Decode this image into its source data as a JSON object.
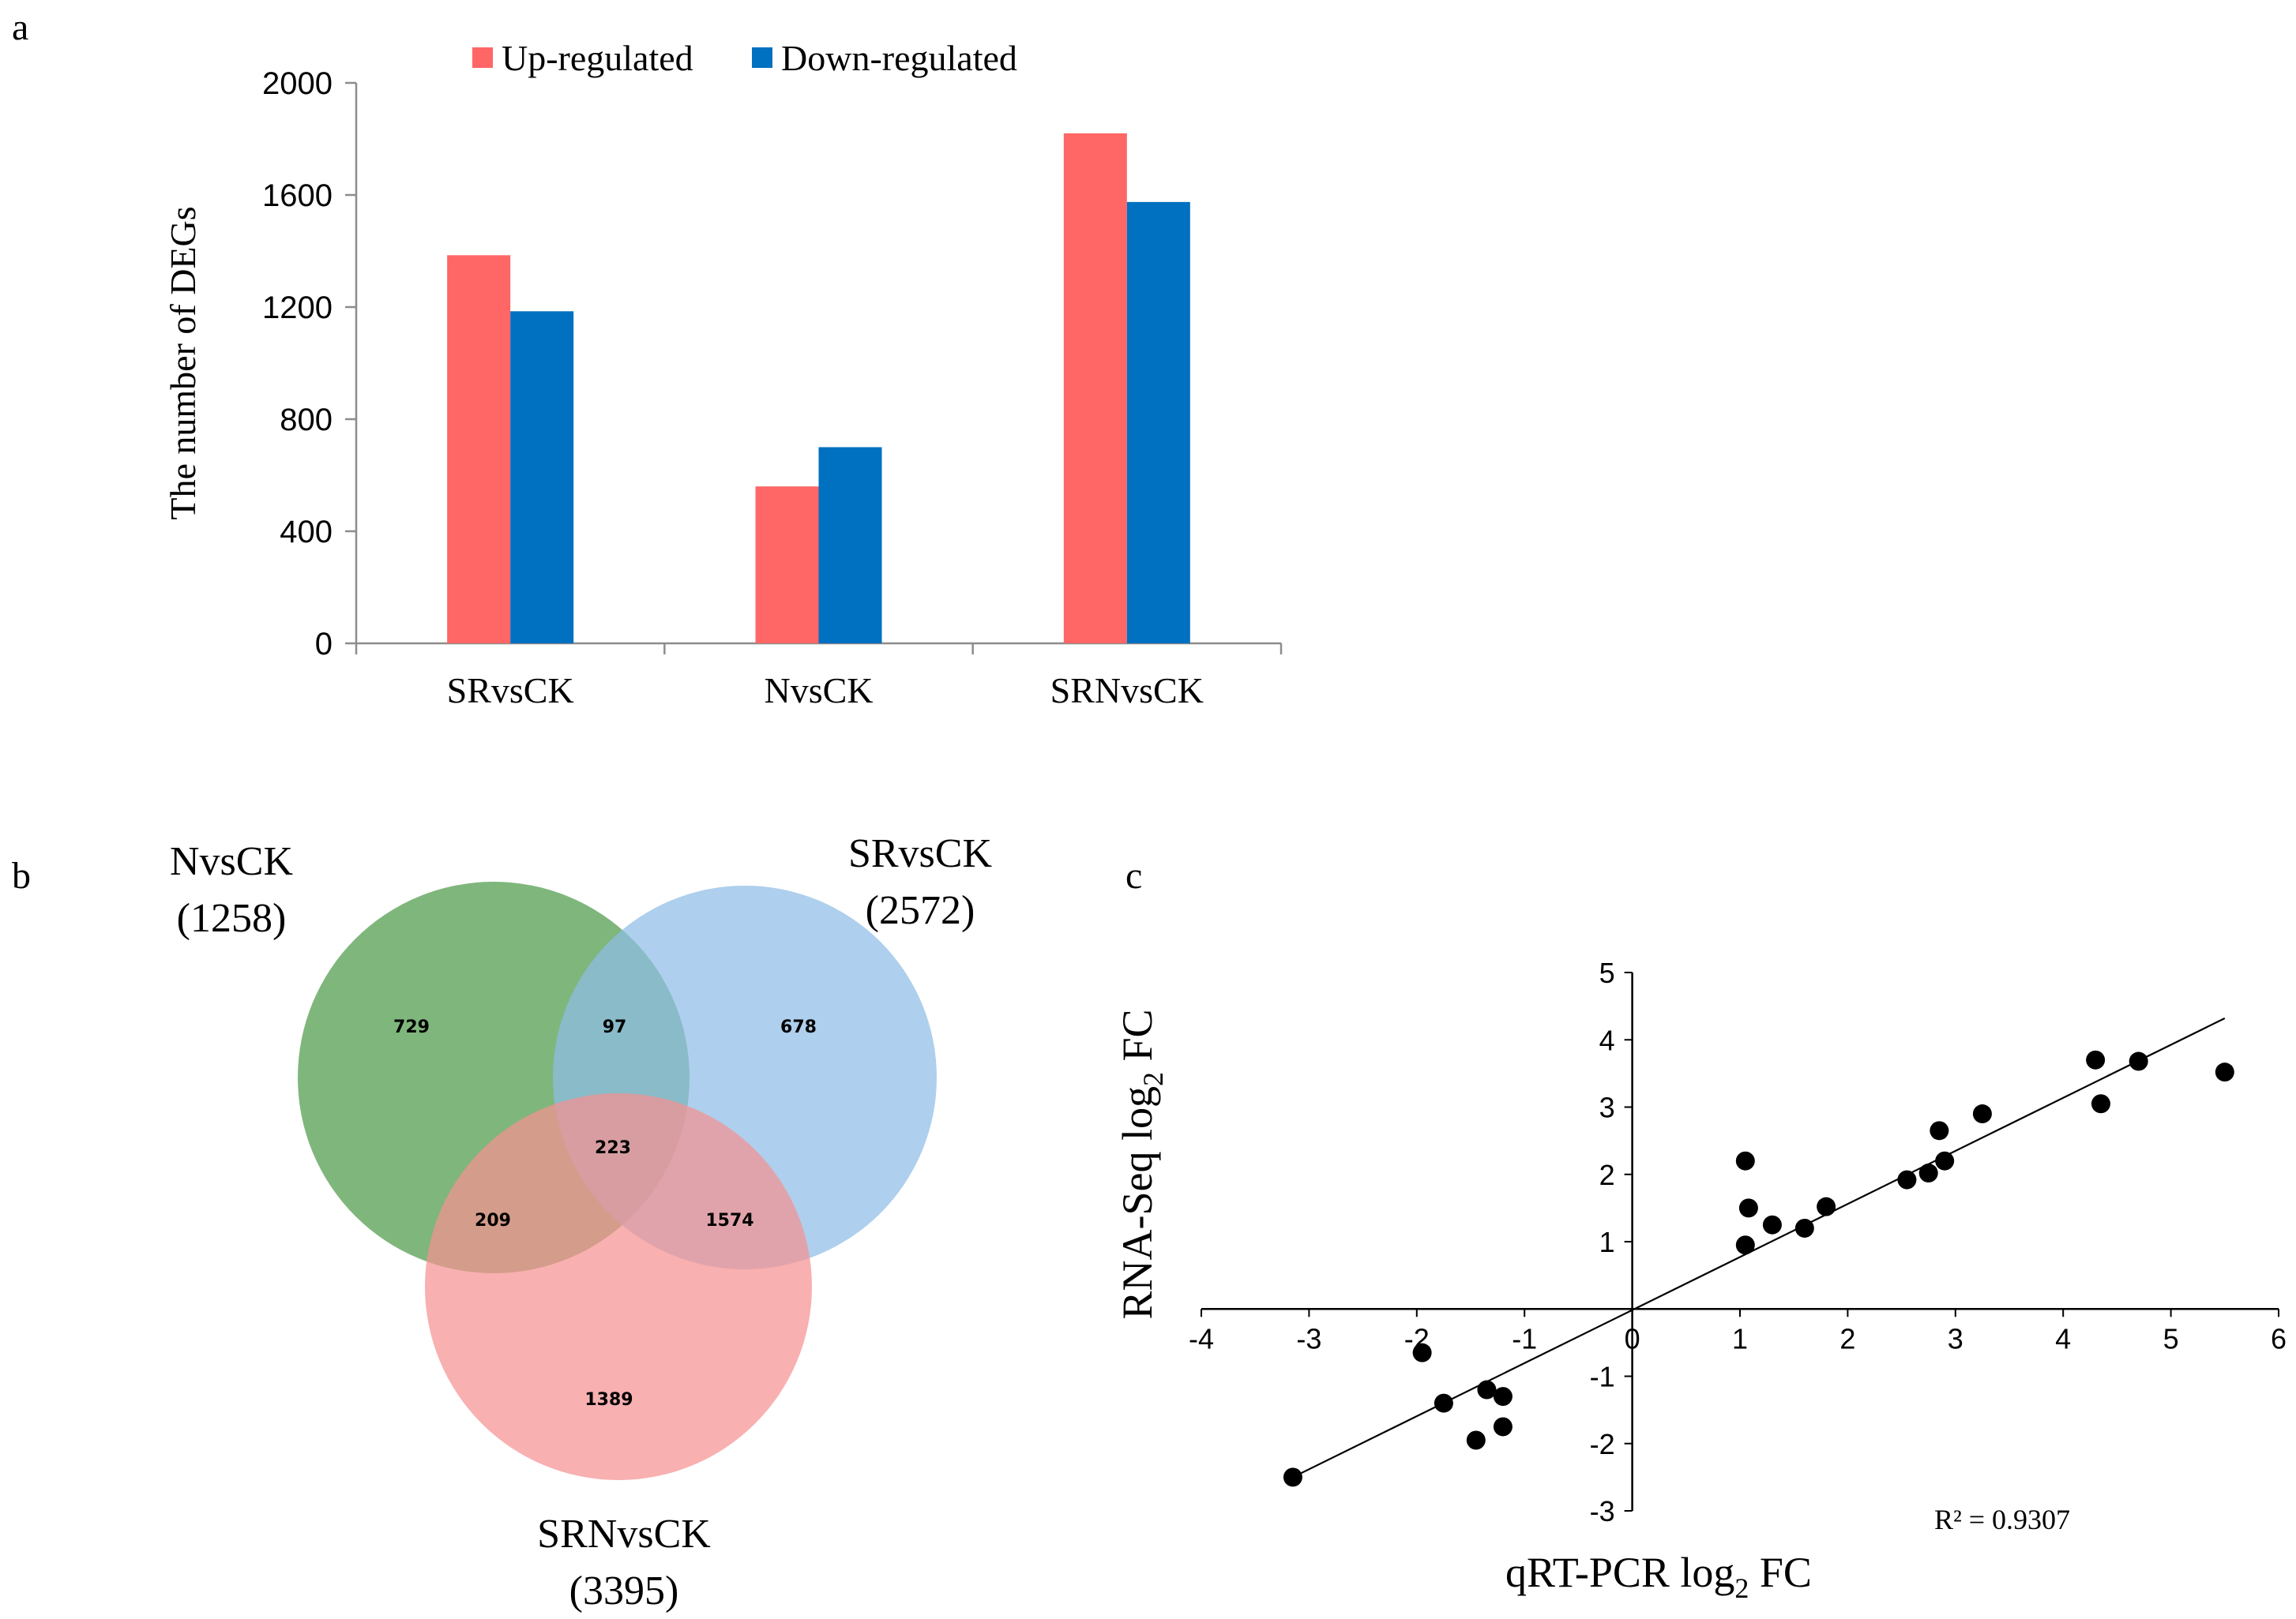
{
  "chart_data": [
    {
      "panel": "a",
      "type": "bar",
      "categories": [
        "SRvsCK",
        "NvsCK",
        "SRNvsCK"
      ],
      "series": [
        {
          "name": "Up-regulated",
          "color": "#ff6666",
          "values": [
            1385,
            560,
            1820
          ]
        },
        {
          "name": "Down-regulated",
          "color": "#0070c0",
          "values": [
            1185,
            700,
            1575
          ]
        }
      ],
      "ylabel": "The number of DEGs",
      "xlabel": "",
      "ylim": [
        0,
        2000
      ],
      "yticks": [
        0,
        400,
        800,
        1200,
        1600,
        2000
      ],
      "ytick_labels": [
        "0",
        "400",
        "800",
        "1200",
        "1600",
        "2000"
      ],
      "legend": "top"
    },
    {
      "panel": "b",
      "type": "venn",
      "sets": [
        {
          "name": "NvsCK",
          "total_label": "(1258)",
          "color": "#4e9a4a"
        },
        {
          "name": "SRvsCK",
          "total_label": "(2572)",
          "color": "#8fbde6"
        },
        {
          "name": "SRNvsCK",
          "total_label": "(3395)",
          "color": "#f59191"
        }
      ],
      "regions": {
        "N_only": "729",
        "SR_only": "678",
        "SRN_only": "1389",
        "N_SR": "97",
        "N_SRN": "209",
        "SR_SRN": "1574",
        "all": "223"
      }
    },
    {
      "panel": "c",
      "type": "scatter",
      "xlabel": "qRT-PCR log",
      "xlabel_sub": "2",
      "xlabel_suffix": " FC",
      "ylabel": "RNA-Seq log",
      "ylabel_sub": "2",
      "ylabel_suffix": " FC",
      "xlim": [
        -4,
        6
      ],
      "ylim": [
        -3,
        5
      ],
      "xticks": [
        -4,
        -3,
        -2,
        -1,
        0,
        1,
        2,
        3,
        4,
        5,
        6
      ],
      "xtick_labels": [
        "-4",
        "-3",
        "-2",
        "-1",
        "0",
        "1",
        "2",
        "3",
        "4",
        "5",
        "6"
      ],
      "yticks": [
        -3,
        -2,
        -1,
        0,
        1,
        2,
        3,
        4,
        5
      ],
      "ytick_labels": [
        "-3",
        "-2",
        "-1",
        "0",
        "1",
        "2",
        "3",
        "4",
        "5"
      ],
      "points": [
        [
          -3.15,
          -2.5
        ],
        [
          -1.95,
          -0.65
        ],
        [
          -1.75,
          -1.4
        ],
        [
          -1.45,
          -1.95
        ],
        [
          -1.35,
          -1.2
        ],
        [
          -1.2,
          -1.3
        ],
        [
          -1.2,
          -1.75
        ],
        [
          1.05,
          2.2
        ],
        [
          1.05,
          0.95
        ],
        [
          1.08,
          1.5
        ],
        [
          1.3,
          1.25
        ],
        [
          1.6,
          1.2
        ],
        [
          1.8,
          1.52
        ],
        [
          2.55,
          1.92
        ],
        [
          2.75,
          2.02
        ],
        [
          2.85,
          2.65
        ],
        [
          2.9,
          2.2
        ],
        [
          3.25,
          2.9
        ],
        [
          4.3,
          3.7
        ],
        [
          4.35,
          3.05
        ],
        [
          4.7,
          3.68
        ],
        [
          5.5,
          3.52
        ]
      ],
      "trendline": {
        "x": [
          -3.15,
          5.5
        ],
        "y": [
          -2.5,
          4.32
        ]
      },
      "annotation": "R² = 0.9307"
    }
  ],
  "panel_labels": {
    "a": "a",
    "b": "b",
    "c": "c"
  }
}
